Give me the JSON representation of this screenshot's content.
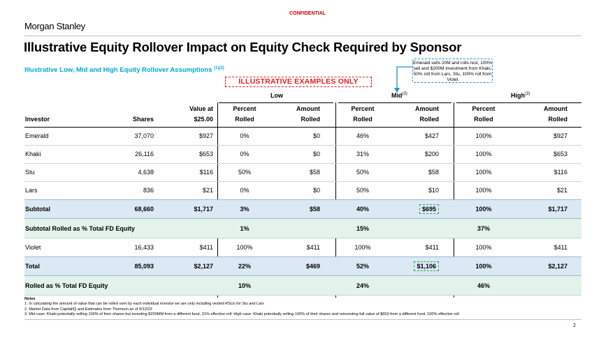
{
  "confidential": "CONFIDENTIAL",
  "logo": "Morgan Stanley",
  "title": "Illustrative Equity Rollover Impact on Equity Check Required by Sponsor",
  "subtitle": "Illustrative Low, Mid and High Equity Rollover Assumptions",
  "subtitle_sup": "(1)(2)",
  "illustrative_label": "ILLUSTRATIVE EXAMPLES ONLY",
  "callout": "Emerald sells 20M and rolls rest, 100% sell and $200M investment from Khaki, 50% roll from Lars, Stu, 100% roll from Violet",
  "groups": {
    "low": {
      "label": "Low",
      "sup": ""
    },
    "mid": {
      "label": "Mid",
      "sup": "(3)"
    },
    "high": {
      "label": "High",
      "sup": "(3)"
    }
  },
  "headers": {
    "investor": "Investor",
    "shares": "Shares",
    "value_top": "Value at",
    "value_bottom": "$25.00",
    "percent": "Percent",
    "amount": "Amount",
    "rolled": "Rolled"
  },
  "rows": [
    {
      "investor": "Emerald",
      "shares": "37,070",
      "value": "$927",
      "low_pct": "0%",
      "low_amt": "$0",
      "mid_pct": "46%",
      "mid_amt": "$427",
      "high_pct": "100%",
      "high_amt": "$927"
    },
    {
      "investor": "Khaki",
      "shares": "26,116",
      "value": "$653",
      "low_pct": "0%",
      "low_amt": "$0",
      "mid_pct": "31%",
      "mid_amt": "$200",
      "high_pct": "100%",
      "high_amt": "$653"
    },
    {
      "investor": "Stu",
      "shares": "4,638",
      "value": "$116",
      "low_pct": "50%",
      "low_amt": "$58",
      "mid_pct": "50%",
      "mid_amt": "$58",
      "high_pct": "100%",
      "high_amt": "$116"
    },
    {
      "investor": "Lars",
      "shares": "836",
      "value": "$21",
      "low_pct": "0%",
      "low_amt": "$0",
      "mid_pct": "50%",
      "mid_amt": "$10",
      "high_pct": "100%",
      "high_amt": "$21"
    },
    {
      "investor": "Subtotal",
      "shares": "68,660",
      "value": "$1,717",
      "low_pct": "3%",
      "low_amt": "$58",
      "mid_pct": "40%",
      "mid_amt": "$695",
      "high_pct": "100%",
      "high_amt": "$1,717"
    },
    {
      "investor": "Subtotal Rolled as % Total FD Equity",
      "shares": "",
      "value": "",
      "low_pct": "1%",
      "low_amt": "",
      "mid_pct": "15%",
      "mid_amt": "",
      "high_pct": "37%",
      "high_amt": ""
    },
    {
      "investor": "Violet",
      "shares": "16,433",
      "value": "$411",
      "low_pct": "100%",
      "low_amt": "$411",
      "mid_pct": "100%",
      "mid_amt": "$411",
      "high_pct": "100%",
      "high_amt": "$411"
    },
    {
      "investor": "Total",
      "shares": "85,093",
      "value": "$2,127",
      "low_pct": "22%",
      "low_amt": "$469",
      "mid_pct": "52%",
      "mid_amt": "$1,106",
      "high_pct": "100%",
      "high_amt": "$2,127"
    },
    {
      "investor": "Rolled as % Total FD Equity",
      "shares": "",
      "value": "",
      "low_pct": "10%",
      "low_amt": "",
      "mid_pct": "24%",
      "mid_amt": "",
      "high_pct": "46%",
      "high_amt": ""
    }
  ],
  "notes": {
    "title": "Notes",
    "items": [
      "1. In calculating the amount of value that can be rolled over by each individual investor we are only including vested RSUs for Stu and Lars",
      "2. Market Data from CapitalIQ and Estimates from Thomson as of 9/12/22",
      "3. Mid case: Khaki potentially selling 100% of their shares but investing $200MM from a different fund, 31% effective roll; High case: Khaki potentially selling 100% of their shares and reinvesting full value of $653 from a different fund, 100% effective roll"
    ]
  },
  "page_number": "2"
}
